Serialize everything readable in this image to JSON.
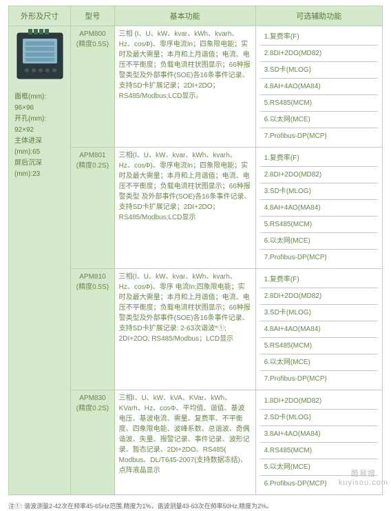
{
  "headers": {
    "shape": "外形及尺寸",
    "model": "型号",
    "basic": "基本功能",
    "aux": "可选辅助功能"
  },
  "shape": {
    "dims": [
      "面框(mm):",
      "96×96",
      "开孔(mm):",
      "92×92",
      "主体进深(mm):65",
      "屏后沉深(mm):23"
    ]
  },
  "rows": [
    {
      "model": "APM800\n(精度0.5S)",
      "basic": "三相 (I、U、kW、kvar、kWh、kvarh、Hz、cosΦ)、零序电流In；四象限电能；实时及最大需量；本月和上月谐值；电流、电压不平衡度；负载电流柱状图显示；66种报警类型及外部事件(SOE)各16条事件记录、支持SD卡扩展记录；2DI+2DO；RS485/Modbus;LCD显示。",
      "aux": [
        "1.复费率(F)",
        "2.8DI+2DO(MD82)",
        "3.SD卡(MLOG)",
        "4.8AI+4AO(MA84)",
        "5.RS485(MCM)",
        "6.以太网(MCE)",
        "7.Profibus-DP(MCP)"
      ]
    },
    {
      "model": "APM801\n(精度0.2S)",
      "basic": "三相(I、U、kW、kvar、kWh、kvarh、Hz、cosΦ)、零序电流In；四象限电能；实时及最大需量；本月和上月谐值；电流、电压不平衡度；负载电流柱状图显示；66种报警类型 及外部事件(SOE)各16条事件记录、支持SD卡扩展记录；2DI+2DO；RS485/Modbus;LCD显示",
      "aux": [
        "1.复费率(F)",
        "2.8DI+2DO(MD82)",
        "3.SD卡(MLOG)",
        "4.8AI+4AO(MA84)",
        "5.RS485(MCM)",
        "6.以太网(MCE)",
        "7.Profibus-DP(MCP)"
      ]
    },
    {
      "model": "APM810\n(精度0.5S)",
      "basic": "三相(I、U、kW、kvar、kWh、kvarh、Hz、cosΦ)、零序 电流In;四象限电能；实时及最大需量；本月和上月谐值；电流、电压不平衡度；负载电流柱状图显示；66种报警类型及外部事件(SOE)各16条事件记录、支持SD卡扩展记录: 2-63次谐波*①; 2DI+2DO; RS485/Modbus；LCD显示",
      "aux": [
        "1.复费率(F)",
        "2.8DI+2DO(MD82)",
        "3.SD卡(MLOG)",
        "4.8AI+4AO(MA84)",
        "5.RS485(MCM)",
        "6.以太网(MCE)",
        "7.Profibus-DP(MCP)"
      ]
    },
    {
      "model": "APM830\n(精度0.2S)",
      "basic": "三相I、U、kW、kVA、KVar、kWh、KVarh、Hz、cosΦ、平均值、谐值、基波电压、基波电流、需量、复费率、不平衡度、四象限电能、波峰系数、总谐波、奇偶谐波、失量、报警记录、事件记录、波形记录、暂态记录、2DI+2DO、RS485( Modbus、DL/T645-2007(支持数据冻结)、点阵液晶显示",
      "aux": [
        "1.8DI+2DO(MD82)",
        "2.SD卡(MLOG)",
        "3.8AI+4AO(MA84)",
        "4.RS485(MCM)",
        "5.以太网(MCE)",
        "6.Profibus-DP(MCP)"
      ]
    }
  ],
  "footnote": "注①: 谐波测量2-42次在频率45-65Hz范围,精度为1%，谐波测量43-63次在频率50Hz,精度为2%。",
  "watermark": "酷易搜\nkuyisou.com"
}
